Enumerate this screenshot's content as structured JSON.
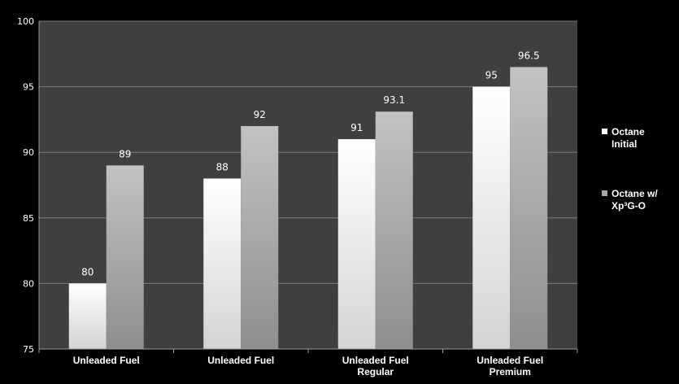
{
  "chart_data": {
    "type": "bar",
    "categories": [
      [
        "Unleaded Fuel"
      ],
      [
        "Unleaded Fuel"
      ],
      [
        "Unleaded Fuel",
        "Regular"
      ],
      [
        "Unleaded Fuel",
        "Premium"
      ]
    ],
    "series": [
      {
        "name": [
          "Octane",
          "Initial"
        ],
        "values": [
          80,
          88,
          91,
          95
        ]
      },
      {
        "name": [
          "Octane w/",
          "Xp³G-O"
        ],
        "values": [
          89,
          92,
          93.1,
          96.5
        ]
      }
    ],
    "data_labels": [
      [
        "80",
        "88",
        "91",
        "95"
      ],
      [
        "89",
        "92",
        "93.1",
        "96.5"
      ]
    ],
    "y_ticks": [
      "75",
      "80",
      "85",
      "90",
      "95",
      "100"
    ],
    "ylim": [
      75,
      100
    ],
    "grid": true,
    "legend": "right",
    "colors": {
      "plot_bg": "#3f3f3f",
      "page_bg": "#000000",
      "grid": "#7a7a7a",
      "series_initial_top": "#ffffff",
      "series_initial_bottom": "#d4d4d4",
      "series_xp3go_top": "#c2c2c2",
      "series_xp3go_bottom": "#8e8e8e"
    }
  }
}
